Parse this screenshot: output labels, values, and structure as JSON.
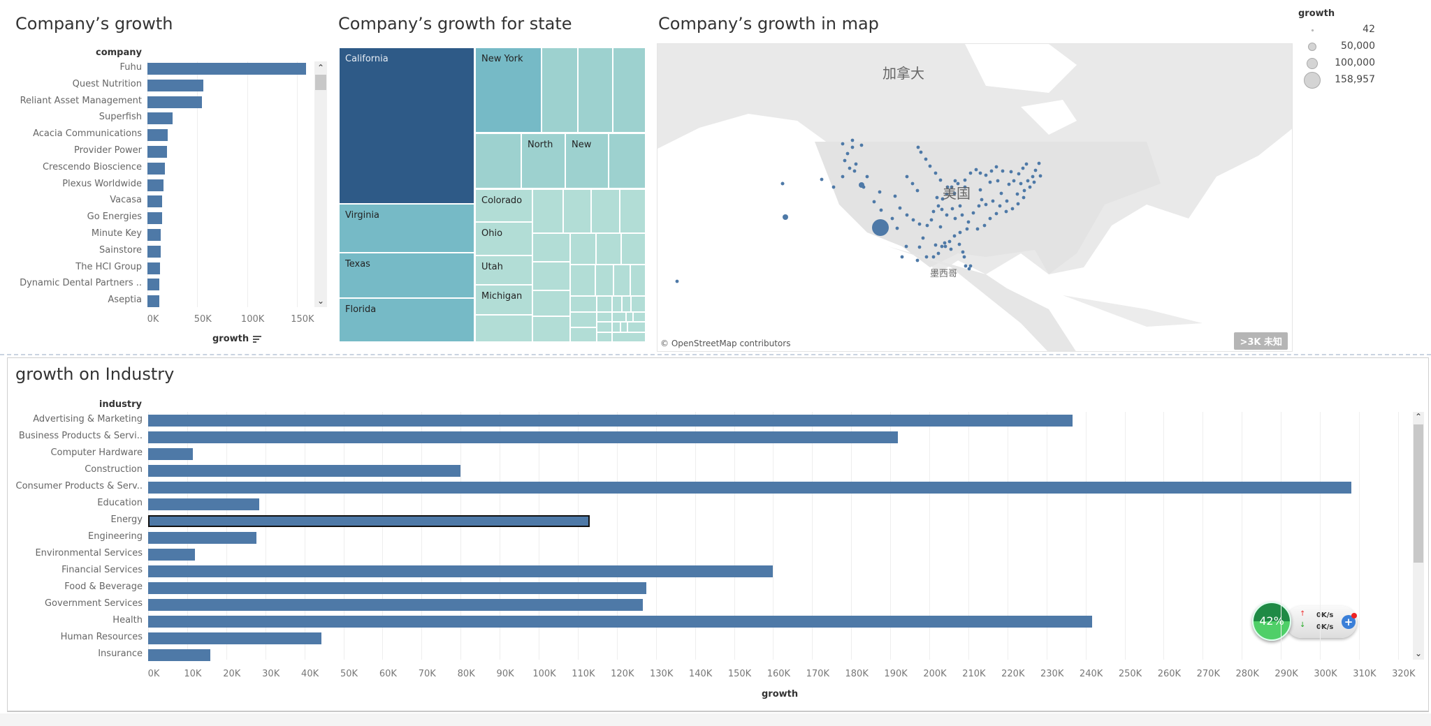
{
  "company_panel": {
    "title": "Company’s growth",
    "row_header": "company",
    "axis_title": "growth",
    "sort_icon": "sort-descending-icon",
    "chart_data": {
      "type": "bar",
      "orientation": "horizontal",
      "categories": [
        "Fuhu",
        "Quest Nutrition",
        "Reliant Asset Management",
        "Superfish",
        "Acacia Communications",
        "Provider Power",
        "Crescendo Bioscience",
        "Plexus Worldwide",
        "Vacasa",
        "Go Energies",
        "Minute Key",
        "Sainstore",
        "The HCI Group",
        "Dynamic Dental Partners ..",
        "Aseptia"
      ],
      "values": [
        158957,
        56000,
        54700,
        25000,
        20000,
        19400,
        17800,
        15900,
        15000,
        15000,
        13300,
        13300,
        12600,
        11900,
        11900
      ],
      "xlabel": "growth",
      "ylabel": "company",
      "xlim": [
        0,
        170000
      ],
      "ticks": [
        "0K",
        "50K",
        "100K",
        "150K"
      ],
      "tick_values": [
        0,
        50000,
        100000,
        150000
      ],
      "color": "#4e79a7"
    }
  },
  "state_panel": {
    "title": "Company’s growth for state",
    "chart_data": {
      "type": "treemap",
      "labels": [
        "California",
        "Virginia",
        "Texas",
        "Florida",
        "New York",
        "North",
        "New",
        "Colorado",
        "Ohio",
        "Utah",
        "Michigan"
      ],
      "colors": {
        "largest": "#2e5a87",
        "large": "#76bac6",
        "medium": "#9dd1cf",
        "small": "#b2ddd6"
      }
    }
  },
  "map_panel": {
    "title": "Company’s growth in map",
    "labels": {
      "canada": "加拿大",
      "usa": "美国",
      "mexico": "墨西哥"
    },
    "attribution": "© OpenStreetMap contributors",
    "unknown_badge": ">3K 未知",
    "dot_color": "#4e79a7",
    "legend": {
      "title": "growth",
      "items": [
        "42",
        "50,000",
        "100,000",
        "158,957"
      ]
    }
  },
  "industry_panel": {
    "title": "growth on Industry",
    "row_header": "industry",
    "axis_title": "growth",
    "selected": "Energy",
    "chart_data": {
      "type": "bar",
      "orientation": "horizontal",
      "categories": [
        "Advertising & Marketing",
        "Business Products & Servi..",
        "Computer Hardware",
        "Construction",
        "Consumer Products & Serv..",
        "Education",
        "Energy",
        "Engineering",
        "Environmental Services",
        "Financial Services",
        "Food & Beverage",
        "Government Services",
        "Health",
        "Human Resources",
        "Insurance"
      ],
      "values": [
        236700,
        192000,
        11400,
        80000,
        308000,
        28500,
        113000,
        27800,
        12000,
        160000,
        127600,
        126600,
        241600,
        44400,
        16000
      ],
      "xlabel": "growth",
      "ylabel": "industry",
      "xlim": [
        0,
        325000
      ],
      "ticks": [
        "0K",
        "10K",
        "20K",
        "30K",
        "40K",
        "50K",
        "60K",
        "70K",
        "80K",
        "90K",
        "100K",
        "110K",
        "120K",
        "130K",
        "140K",
        "150K",
        "160K",
        "170K",
        "180K",
        "190K",
        "200K",
        "210K",
        "220K",
        "230K",
        "240K",
        "250K",
        "260K",
        "270K",
        "280K",
        "290K",
        "300K",
        "310K",
        "320K"
      ],
      "grid": true,
      "color": "#4e79a7"
    }
  },
  "net_widget": {
    "percent": "42%",
    "upload": "0K/s",
    "download": "0K/s"
  }
}
